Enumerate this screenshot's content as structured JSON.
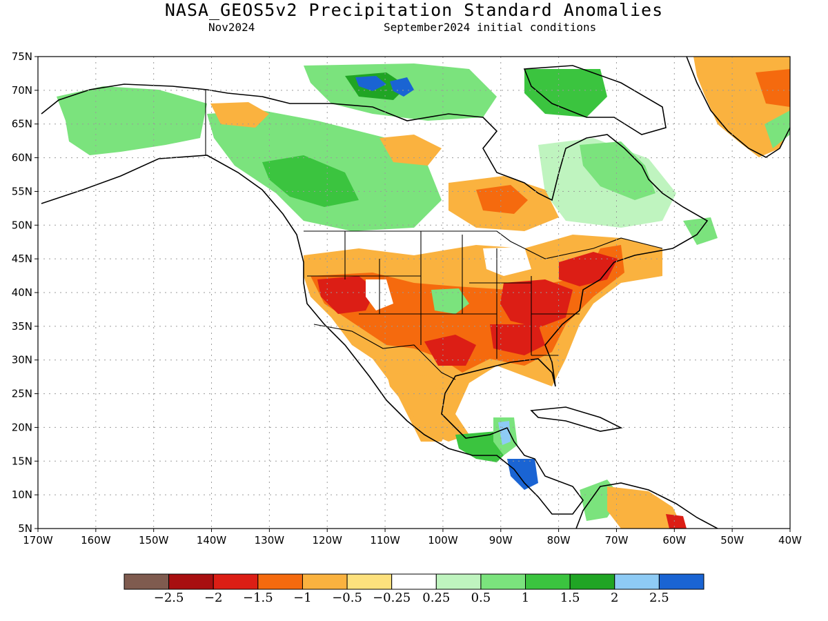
{
  "header": {
    "title": "NASA_GEOS5v2 Precipitation Standard Anomalies",
    "valid_month": "Nov2024",
    "init_conditions": "September2024 initial conditions"
  },
  "axes": {
    "lat_labels": [
      "75N",
      "70N",
      "65N",
      "60N",
      "55N",
      "50N",
      "45N",
      "40N",
      "35N",
      "30N",
      "25N",
      "20N",
      "15N",
      "10N",
      "5N"
    ],
    "lon_labels": [
      "170W",
      "160W",
      "150W",
      "140W",
      "130W",
      "120W",
      "110W",
      "100W",
      "90W",
      "80W",
      "70W",
      "60W",
      "50W",
      "40W"
    ]
  },
  "colorbar": {
    "colors": [
      "#7f5b4f",
      "#a80f10",
      "#dc1e15",
      "#f56a0e",
      "#fab23f",
      "#fde17d",
      "#ffffff",
      "#bff4bf",
      "#7be37d",
      "#3bc43f",
      "#20a524",
      "#8ecbf5",
      "#1a64d3"
    ],
    "labels": [
      "−2.5",
      "−2",
      "−1.5",
      "−1",
      "−0.5",
      "−0.25",
      "0.25",
      "0.5",
      "1",
      "1.5",
      "2",
      "2.5"
    ]
  },
  "colors": {
    "strong_dry": "#dc1e15",
    "moderate_dry": "#f56a0e",
    "dry": "#fab23f",
    "slight_dry": "#fde17d",
    "slight_wet": "#bff4bf",
    "wet": "#7be37d",
    "moderate_wet": "#3bc43f",
    "very_wet": "#20a524",
    "extreme_wet": "#1a64d3"
  }
}
